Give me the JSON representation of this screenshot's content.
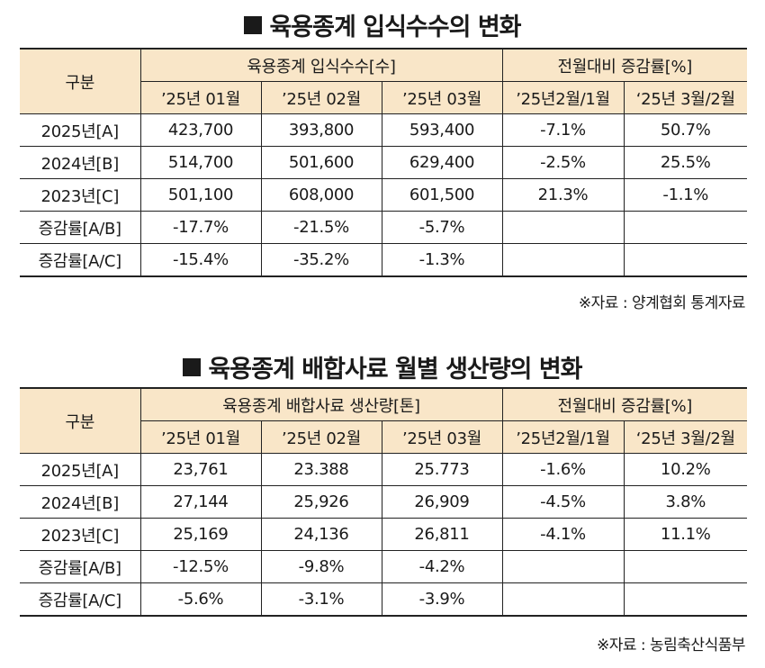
{
  "table1": {
    "title": "육용종계 입식수수의 변화",
    "header_label": "구분",
    "group1": "육용종계 입식수수[수]",
    "group2": "전월대비 증감률[%]",
    "cols": [
      "’25년 01월",
      "’25년 02월",
      "’25년 03월",
      "’25년2월/1월",
      "‘25년 3월/2월"
    ],
    "rows": [
      {
        "label": "2025년[A]",
        "cells": [
          "423,700",
          "393,800",
          "593,400",
          "-7.1%",
          "50.7%"
        ]
      },
      {
        "label": "2024년[B]",
        "cells": [
          "514,700",
          "501,600",
          "629,400",
          "-2.5%",
          "25.5%"
        ]
      },
      {
        "label": "2023년[C]",
        "cells": [
          "501,100",
          "608,000",
          "601,500",
          "21.3%",
          "-1.1%"
        ]
      },
      {
        "label": "증감률[A/B]",
        "cells": [
          "-17.7%",
          "-21.5%",
          "-5.7%",
          "",
          ""
        ]
      },
      {
        "label": "증감률[A/C]",
        "cells": [
          "-15.4%",
          "-35.2%",
          "-1.3%",
          "",
          ""
        ]
      }
    ],
    "source": "※자료 : 양계협회 통계자료"
  },
  "table2": {
    "title": "육용종계 배합사료 월별 생산량의 변화",
    "header_label": "구분",
    "group1": "육용종계 배합사료 생산량[톤]",
    "group2": "전월대비 증감률[%]",
    "cols": [
      "’25년 01월",
      "’25년 02월",
      "’25년 03월",
      "’25년2월/1월",
      "‘25년 3월/2월"
    ],
    "rows": [
      {
        "label": "2025년[A]",
        "cells": [
          "23,761",
          "23.388",
          "25.773",
          "-1.6%",
          "10.2%"
        ]
      },
      {
        "label": "2024년[B]",
        "cells": [
          "27,144",
          "25,926",
          "26,909",
          "-4.5%",
          "3.8%"
        ]
      },
      {
        "label": "2023년[C]",
        "cells": [
          "25,169",
          "24,136",
          "26,811",
          "-4.1%",
          "11.1%"
        ]
      },
      {
        "label": "증감률[A/B]",
        "cells": [
          "-12.5%",
          "-9.8%",
          "-4.2%",
          "",
          ""
        ]
      },
      {
        "label": "증감률[A/C]",
        "cells": [
          "-5.6%",
          "-3.1%",
          "-3.9%",
          "",
          ""
        ]
      }
    ],
    "source": "※자료 : 농림축산식품부"
  }
}
